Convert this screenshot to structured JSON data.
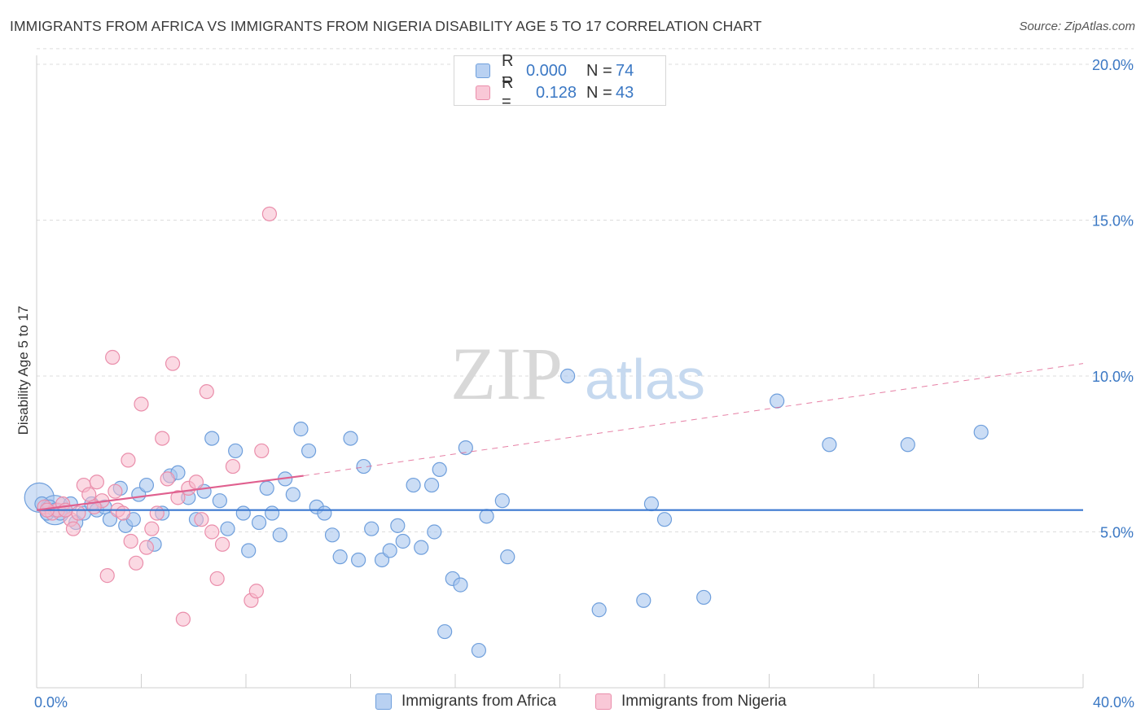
{
  "title": "IMMIGRANTS FROM AFRICA VS IMMIGRANTS FROM NIGERIA DISABILITY AGE 5 TO 17 CORRELATION CHART",
  "source": "Source: ZipAtlas.com",
  "watermark": {
    "zip": "ZIP",
    "atlas": "atlas"
  },
  "legend": {
    "africa": {
      "r_label": "R =",
      "r_value": "0.000",
      "n_label": "N =",
      "n_value": "74"
    },
    "nigeria": {
      "r_label": "R =",
      "r_value": "0.128",
      "n_label": "N =",
      "n_value": "43"
    }
  },
  "colors": {
    "africa_fill": "#a9c7ef",
    "africa_stroke": "#6f9fdc",
    "africa_line": "#3b78d0",
    "nigeria_fill": "#f7b9cc",
    "nigeria_stroke": "#ea8eab",
    "nigeria_line": "#e0608f",
    "axis_text": "#3b78c4",
    "grid": "#dddddd"
  },
  "chart_data": {
    "type": "scatter",
    "title": "IMMIGRANTS FROM AFRICA VS IMMIGRANTS FROM NIGERIA DISABILITY AGE 5 TO 17 CORRELATION CHART",
    "xlabel": "",
    "ylabel": "Disability Age 5 to 17",
    "xlim": [
      0,
      40
    ],
    "ylim": [
      0,
      20.8
    ],
    "x_tick_labels": [
      "0.0%",
      "40.0%"
    ],
    "y_ticks": [
      5,
      10,
      15,
      20
    ],
    "y_tick_labels": [
      "5.0%",
      "10.0%",
      "15.0%",
      "20.0%"
    ],
    "grid": true,
    "legend_position": "top-center",
    "series": [
      {
        "name": "Immigrants from Africa",
        "r": 0.0,
        "n": 74,
        "trend": {
          "x": [
            0,
            40
          ],
          "y": [
            5.7,
            5.7
          ],
          "dashed_extension": false
        },
        "points": [
          [
            0.2,
            5.9
          ],
          [
            0.4,
            5.6
          ],
          [
            0.5,
            5.8
          ],
          [
            0.7,
            5.7
          ],
          [
            0.9,
            5.6
          ],
          [
            1.1,
            5.7
          ],
          [
            1.3,
            5.9
          ],
          [
            1.5,
            5.3
          ],
          [
            1.8,
            5.6
          ],
          [
            2.1,
            5.9
          ],
          [
            2.3,
            5.7
          ],
          [
            2.6,
            5.8
          ],
          [
            2.8,
            5.4
          ],
          [
            3.2,
            6.4
          ],
          [
            3.4,
            5.2
          ],
          [
            3.7,
            5.4
          ],
          [
            3.9,
            6.2
          ],
          [
            4.2,
            6.5
          ],
          [
            4.5,
            4.6
          ],
          [
            4.8,
            5.6
          ],
          [
            5.1,
            6.8
          ],
          [
            5.4,
            6.9
          ],
          [
            5.8,
            6.1
          ],
          [
            6.1,
            5.4
          ],
          [
            6.4,
            6.3
          ],
          [
            6.7,
            8.0
          ],
          [
            7.0,
            6.0
          ],
          [
            7.3,
            5.1
          ],
          [
            7.6,
            7.6
          ],
          [
            7.9,
            5.6
          ],
          [
            8.1,
            4.4
          ],
          [
            8.5,
            5.3
          ],
          [
            8.8,
            6.4
          ],
          [
            9.0,
            5.6
          ],
          [
            9.3,
            4.9
          ],
          [
            9.5,
            6.7
          ],
          [
            9.8,
            6.2
          ],
          [
            10.1,
            8.3
          ],
          [
            10.4,
            7.6
          ],
          [
            10.7,
            5.8
          ],
          [
            11.0,
            5.6
          ],
          [
            11.3,
            4.9
          ],
          [
            11.6,
            4.2
          ],
          [
            12.0,
            8.0
          ],
          [
            12.3,
            4.1
          ],
          [
            12.5,
            7.1
          ],
          [
            12.8,
            5.1
          ],
          [
            13.2,
            4.1
          ],
          [
            13.5,
            4.4
          ],
          [
            13.8,
            5.2
          ],
          [
            14.0,
            4.7
          ],
          [
            14.4,
            6.5
          ],
          [
            14.7,
            4.5
          ],
          [
            15.1,
            6.5
          ],
          [
            15.2,
            5.0
          ],
          [
            15.4,
            7.0
          ],
          [
            15.6,
            1.8
          ],
          [
            15.9,
            3.5
          ],
          [
            16.2,
            3.3
          ],
          [
            16.4,
            7.7
          ],
          [
            16.9,
            1.2
          ],
          [
            17.2,
            5.5
          ],
          [
            17.8,
            6.0
          ],
          [
            18.0,
            4.2
          ],
          [
            20.3,
            10.0
          ],
          [
            21.5,
            2.5
          ],
          [
            23.2,
            2.8
          ],
          [
            23.5,
            5.9
          ],
          [
            24.0,
            5.4
          ],
          [
            25.5,
            2.9
          ],
          [
            28.3,
            9.2
          ],
          [
            30.3,
            7.8
          ],
          [
            33.3,
            7.8
          ],
          [
            36.1,
            8.2
          ]
        ],
        "large_points": [
          [
            0.1,
            6.1
          ],
          [
            0.7,
            5.7
          ]
        ]
      },
      {
        "name": "Immigrants from Nigeria",
        "r": 0.128,
        "n": 43,
        "trend": {
          "x": [
            0,
            10.2
          ],
          "y": [
            5.7,
            6.8
          ],
          "dashed_extension_to": [
            40,
            10.4
          ]
        },
        "points": [
          [
            0.3,
            5.8
          ],
          [
            0.6,
            5.6
          ],
          [
            0.8,
            5.7
          ],
          [
            1.0,
            5.9
          ],
          [
            1.3,
            5.4
          ],
          [
            1.4,
            5.1
          ],
          [
            1.6,
            5.6
          ],
          [
            1.8,
            6.5
          ],
          [
            2.0,
            6.2
          ],
          [
            2.3,
            6.6
          ],
          [
            2.5,
            6.0
          ],
          [
            2.7,
            3.6
          ],
          [
            2.9,
            10.6
          ],
          [
            3.1,
            5.7
          ],
          [
            3.3,
            5.6
          ],
          [
            3.5,
            7.3
          ],
          [
            3.6,
            4.7
          ],
          [
            3.8,
            4.0
          ],
          [
            4.0,
            9.1
          ],
          [
            4.2,
            4.5
          ],
          [
            4.4,
            5.1
          ],
          [
            4.6,
            5.6
          ],
          [
            4.8,
            8.0
          ],
          [
            5.0,
            6.7
          ],
          [
            5.2,
            10.4
          ],
          [
            5.4,
            6.1
          ],
          [
            5.6,
            2.2
          ],
          [
            5.8,
            6.4
          ],
          [
            6.1,
            6.6
          ],
          [
            6.3,
            5.4
          ],
          [
            6.5,
            9.5
          ],
          [
            6.7,
            5.0
          ],
          [
            6.9,
            3.5
          ],
          [
            7.1,
            4.6
          ],
          [
            7.5,
            7.1
          ],
          [
            8.2,
            2.8
          ],
          [
            8.4,
            3.1
          ],
          [
            8.6,
            7.6
          ],
          [
            8.9,
            15.2
          ],
          [
            1.1,
            5.7
          ],
          [
            0.4,
            5.7
          ],
          [
            2.2,
            5.8
          ],
          [
            3.0,
            6.3
          ]
        ]
      }
    ]
  },
  "bottom_legend": {
    "africa_label": "Immigrants from Africa",
    "nigeria_label": "Immigrants from Nigeria"
  }
}
